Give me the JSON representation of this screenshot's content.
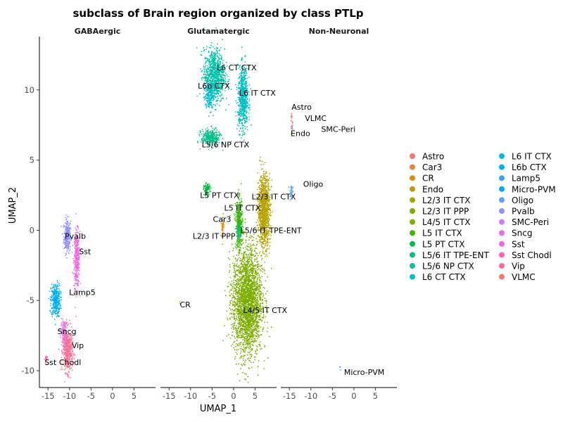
{
  "chart_data": {
    "type": "scatter",
    "title": "subclass of Brain region organized by class PTLp",
    "xlabel": "UMAP_1",
    "ylabel": "UMAP_2",
    "xlim": [
      -17,
      10
    ],
    "ylim": [
      -11.2,
      13.8
    ],
    "x_ticks": [
      -15,
      -10,
      -5,
      0,
      5
    ],
    "y_ticks": [
      -10,
      -5,
      0,
      5,
      10
    ],
    "legend_position": "right",
    "panels": [
      {
        "name": "GABAergic",
        "clusters": [
          {
            "subclass": "Pvalb",
            "label": "Pvalb",
            "x": -10.5,
            "y": -0.4,
            "sx": 0.4,
            "sy": 0.6,
            "n": 260,
            "label_x": -11.1,
            "label_y": -0.6
          },
          {
            "subclass": "Sst",
            "label": "Sst",
            "x": -8.3,
            "y": -2.1,
            "sx": 0.35,
            "sy": 1.0,
            "n": 320,
            "label_x": -7.8,
            "label_y": -1.7
          },
          {
            "subclass": "Lamp5",
            "label": "Lamp5",
            "x": -13.2,
            "y": -5.0,
            "sx": 0.55,
            "sy": 0.6,
            "n": 340,
            "label_x": -10.1,
            "label_y": -4.6
          },
          {
            "subclass": "Sncg",
            "label": "Sncg",
            "x": -11.3,
            "y": -7.3,
            "sx": 0.35,
            "sy": 0.45,
            "n": 140,
            "label_x": -12.8,
            "label_y": -7.4
          },
          {
            "subclass": "Vip",
            "label": "Vip",
            "x": -10.4,
            "y": -8.6,
            "sx": 0.55,
            "sy": 0.75,
            "n": 420,
            "label_x": -9.5,
            "label_y": -8.4
          },
          {
            "subclass": "Sst Chodl",
            "label": "Sst Chodl",
            "x": -15.5,
            "y": -9.2,
            "sx": 0.15,
            "sy": 0.15,
            "n": 20,
            "label_x": -15.8,
            "label_y": -9.6
          }
        ]
      },
      {
        "name": "Glutamatergic",
        "clusters": [
          {
            "subclass": "L6 CT CTX",
            "label": "L6 CT CTX",
            "x": -4.5,
            "y": 11.0,
            "sx": 1.2,
            "sy": 0.95,
            "n": 900,
            "label_x": -3.9,
            "label_y": 11.4
          },
          {
            "subclass": "L6b CTX",
            "label": "L6b CTX",
            "x": -5.5,
            "y": 9.6,
            "sx": 0.5,
            "sy": 0.4,
            "n": 140,
            "label_x": -8.3,
            "label_y": 10.1
          },
          {
            "subclass": "L6 IT CTX",
            "label": "L6 IT CTX",
            "x": 2.2,
            "y": 9.4,
            "sx": 0.6,
            "sy": 1.1,
            "n": 650,
            "label_x": 1.3,
            "label_y": 9.6
          },
          {
            "subclass": "L5/6 NP CTX",
            "label": "L5/6 NP CTX",
            "x": -5.3,
            "y": 6.6,
            "sx": 1.1,
            "sy": 0.3,
            "n": 300,
            "label_x": -7.4,
            "label_y": 5.9
          },
          {
            "subclass": "L5 PT CTX",
            "label": "L5 PT CTX",
            "x": -6.2,
            "y": 2.9,
            "sx": 0.35,
            "sy": 0.2,
            "n": 90,
            "label_x": -7.8,
            "label_y": 2.3
          },
          {
            "subclass": "L2/3 IT CTX",
            "label": "L2/3 IT CTX",
            "x": 7.1,
            "y": 1.4,
            "sx": 0.7,
            "sy": 1.25,
            "n": 1100,
            "label_x": 4.2,
            "label_y": 2.2
          },
          {
            "subclass": "L5 IT CTX",
            "label": "L5 IT CTX",
            "x": 1.3,
            "y": 0.5,
            "sx": 0.4,
            "sy": 0.85,
            "n": 380,
            "label_x": -2.2,
            "label_y": 1.4
          },
          {
            "subclass": "Car3",
            "label": "Car3",
            "x": -2.5,
            "y": 0.4,
            "sx": 0.12,
            "sy": 0.3,
            "n": 40,
            "label_x": -4.8,
            "label_y": 0.6
          },
          {
            "subclass": "L5/6 IT TPE-ENT",
            "label": "L5/6 IT TPE-ENT",
            "x": 1.3,
            "y": -0.1,
            "sx": 0.3,
            "sy": 0.3,
            "n": 60,
            "label_x": 1.6,
            "label_y": -0.2
          },
          {
            "subclass": "L2/3 IT PPP",
            "label": "L2/3 IT PPP",
            "x": -2.6,
            "y": -0.5,
            "sx": 0.12,
            "sy": 0.12,
            "n": 6,
            "label_x": -9.5,
            "label_y": -0.6
          },
          {
            "subclass": "L4/5 IT CTX",
            "label": "L4/5 IT CTX",
            "x": 3.2,
            "y": -5.0,
            "sx": 1.7,
            "sy": 1.9,
            "n": 2600,
            "label_x": 2.2,
            "label_y": -5.9
          },
          {
            "subclass": "CR",
            "label": "CR",
            "x": -12.3,
            "y": -5.1,
            "sx": 0.1,
            "sy": 0.1,
            "n": 2,
            "label_x": -12.5,
            "label_y": -5.5
          }
        ]
      },
      {
        "name": "Non-Neuronal",
        "clusters": [
          {
            "subclass": "Astro",
            "label": "Astro",
            "x": -14.5,
            "y": 8.1,
            "sx": 0.1,
            "sy": 0.15,
            "n": 8,
            "label_x": -14.5,
            "label_y": 8.6
          },
          {
            "subclass": "VLMC",
            "label": "VLMC",
            "x": -14.4,
            "y": 7.6,
            "sx": 0.08,
            "sy": 0.1,
            "n": 6,
            "label_x": -11.4,
            "label_y": 7.8
          },
          {
            "subclass": "SMC-Peri",
            "label": "SMC-Peri",
            "x": -14.4,
            "y": 7.3,
            "sx": 0.08,
            "sy": 0.1,
            "n": 5,
            "label_x": -7.6,
            "label_y": 7.0
          },
          {
            "subclass": "Endo",
            "label": "Endo",
            "x": -14.5,
            "y": 7.0,
            "sx": 0.08,
            "sy": 0.1,
            "n": 4,
            "label_x": -14.7,
            "label_y": 6.7
          },
          {
            "subclass": "Oligo",
            "label": "Oligo",
            "x": -14.6,
            "y": 2.8,
            "sx": 0.18,
            "sy": 0.3,
            "n": 30,
            "label_x": -11.8,
            "label_y": 3.1
          },
          {
            "subclass": "Micro-PVM",
            "label": "Micro-PVM",
            "x": -3.2,
            "y": -9.8,
            "sx": 0.1,
            "sy": 0.1,
            "n": 3,
            "label_x": -2.3,
            "label_y": -10.3
          }
        ]
      }
    ],
    "legend": [
      {
        "name": "Astro",
        "color": "#F8766D"
      },
      {
        "name": "Car3",
        "color": "#EA8331"
      },
      {
        "name": "CR",
        "color": "#D89000"
      },
      {
        "name": "Endo",
        "color": "#C09B00"
      },
      {
        "name": "L2/3 IT CTX",
        "color": "#A3A500"
      },
      {
        "name": "L2/3 IT PPP",
        "color": "#7CAE00"
      },
      {
        "name": "L4/5 IT CTX",
        "color": "#7CAE00"
      },
      {
        "name": "L5 IT CTX",
        "color": "#39B600"
      },
      {
        "name": "L5 PT CTX",
        "color": "#00BB4E"
      },
      {
        "name": "L5/6 IT TPE-ENT",
        "color": "#00BF7D"
      },
      {
        "name": "L5/6 NP CTX",
        "color": "#00C1A3"
      },
      {
        "name": "L6 CT CTX",
        "color": "#00BFC4"
      },
      {
        "name": "L6 IT CTX",
        "color": "#00BAE0"
      },
      {
        "name": "L6b CTX",
        "color": "#00B0F6"
      },
      {
        "name": "Lamp5",
        "color": "#35A2FF"
      },
      {
        "name": "Micro-PVM",
        "color": "#00A9FF"
      },
      {
        "name": "Oligo",
        "color": "#619CFF"
      },
      {
        "name": "Pvalb",
        "color": "#9590FF"
      },
      {
        "name": "SMC-Peri",
        "color": "#C77CFF"
      },
      {
        "name": "Sncg",
        "color": "#E76BF3"
      },
      {
        "name": "Sst",
        "color": "#F564E3"
      },
      {
        "name": "Sst Chodl",
        "color": "#FF62BC"
      },
      {
        "name": "Vip",
        "color": "#FF6C91"
      },
      {
        "name": "VLMC",
        "color": "#F8766D"
      }
    ],
    "cluster_colors": {
      "Astro": "#F8766D",
      "Car3": "#E58700",
      "CR": "#C99800",
      "Endo": "#A3A500",
      "L2/3 IT CTX": "#B9A300",
      "L2/3 IT PPP": "#8EAB00",
      "L4/5 IT CTX": "#7CAE00",
      "L5 IT CTX": "#39B600",
      "L5 PT CTX": "#00BA38",
      "L5/6 IT TPE-ENT": "#00BF7D",
      "L5/6 NP CTX": "#00C08B",
      "L6 CT CTX": "#00C1AA",
      "L6 IT CTX": "#00BFC4",
      "L6b CTX": "#00BCD8",
      "Lamp5": "#00B0F6",
      "Micro-PVM": "#35A2FF",
      "Oligo": "#619CFF",
      "Pvalb": "#9590FF",
      "SMC-Peri": "#C77CFF",
      "Sncg": "#E76BF3",
      "Sst": "#F564E3",
      "Sst Chodl": "#FF62BC",
      "Vip": "#FF6C91",
      "VLMC": "#FF6C91"
    }
  }
}
